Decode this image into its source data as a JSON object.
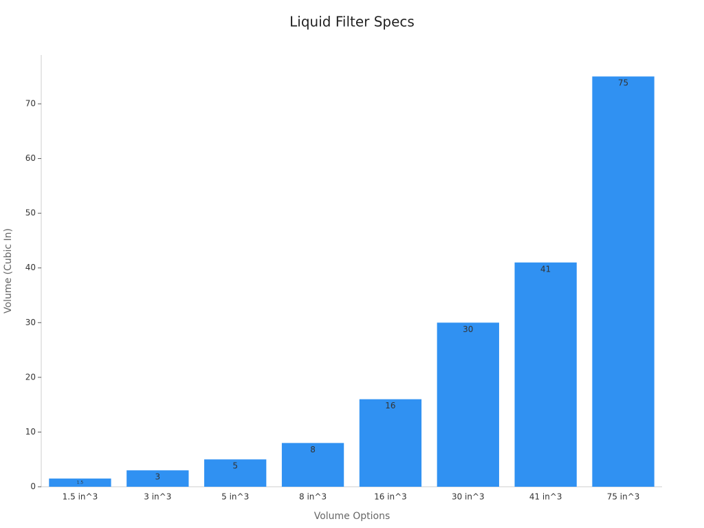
{
  "chart_data": {
    "type": "bar",
    "title": "Liquid Filter Specs",
    "x_label": "Volume Options",
    "y_label": "Volume (Cubic In)",
    "categories": [
      "1.5 in^3",
      "3 in^3",
      "5 in^3",
      "8 in^3",
      "16 in^3",
      "30 in^3",
      "41 in^3",
      "75 in^3"
    ],
    "values": [
      1.5,
      3,
      5,
      8,
      16,
      30,
      41,
      75
    ],
    "color": "#3091f2",
    "ylim": [
      0,
      78.75
    ],
    "yticks": [
      0,
      10,
      20,
      30,
      40,
      50,
      60,
      70
    ],
    "grid": false
  }
}
